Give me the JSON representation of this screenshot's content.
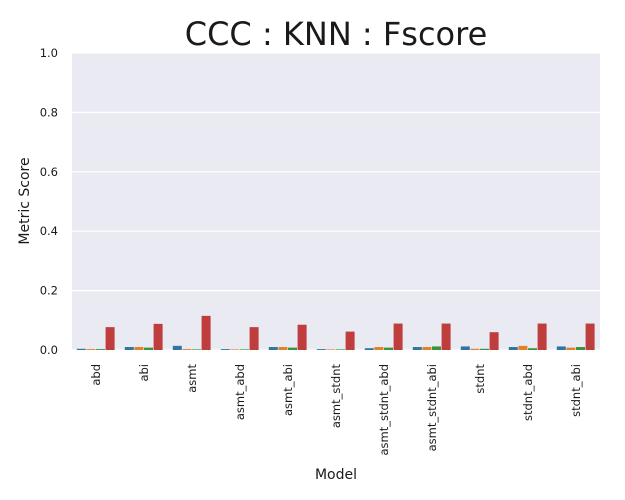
{
  "chart_data": {
    "type": "bar",
    "title": "CCC : KNN : Fscore",
    "xlabel": "Model",
    "ylabel": "Metric Score",
    "ylim": [
      0,
      1.0
    ],
    "yticks": [
      "0.0",
      "0.2",
      "0.4",
      "0.6",
      "0.8",
      "1.0"
    ],
    "grid": true,
    "categories": [
      "abd",
      "abi",
      "asmt",
      "asmt_abd",
      "asmt_abi",
      "asmt_stdnt",
      "asmt_stdnt_abd",
      "asmt_stdnt_abi",
      "stdnt",
      "stdnt_abd",
      "stdnt_abi"
    ],
    "series": [
      {
        "color": "#3274a1",
        "values": [
          0.004,
          0.01,
          0.014,
          0.003,
          0.01,
          0.003,
          0.006,
          0.01,
          0.012,
          0.01,
          0.012
        ]
      },
      {
        "color": "#e1812c",
        "values": [
          0.003,
          0.01,
          0.003,
          0.002,
          0.01,
          0.002,
          0.01,
          0.01,
          0.004,
          0.014,
          0.008
        ]
      },
      {
        "color": "#3a923a",
        "values": [
          0.003,
          0.008,
          0.002,
          0.002,
          0.008,
          0.002,
          0.008,
          0.012,
          0.004,
          0.006,
          0.01
        ]
      },
      {
        "color": "#c03d3e",
        "values": [
          0.077,
          0.088,
          0.115,
          0.077,
          0.085,
          0.062,
          0.089,
          0.089,
          0.06,
          0.089,
          0.089
        ]
      }
    ]
  }
}
